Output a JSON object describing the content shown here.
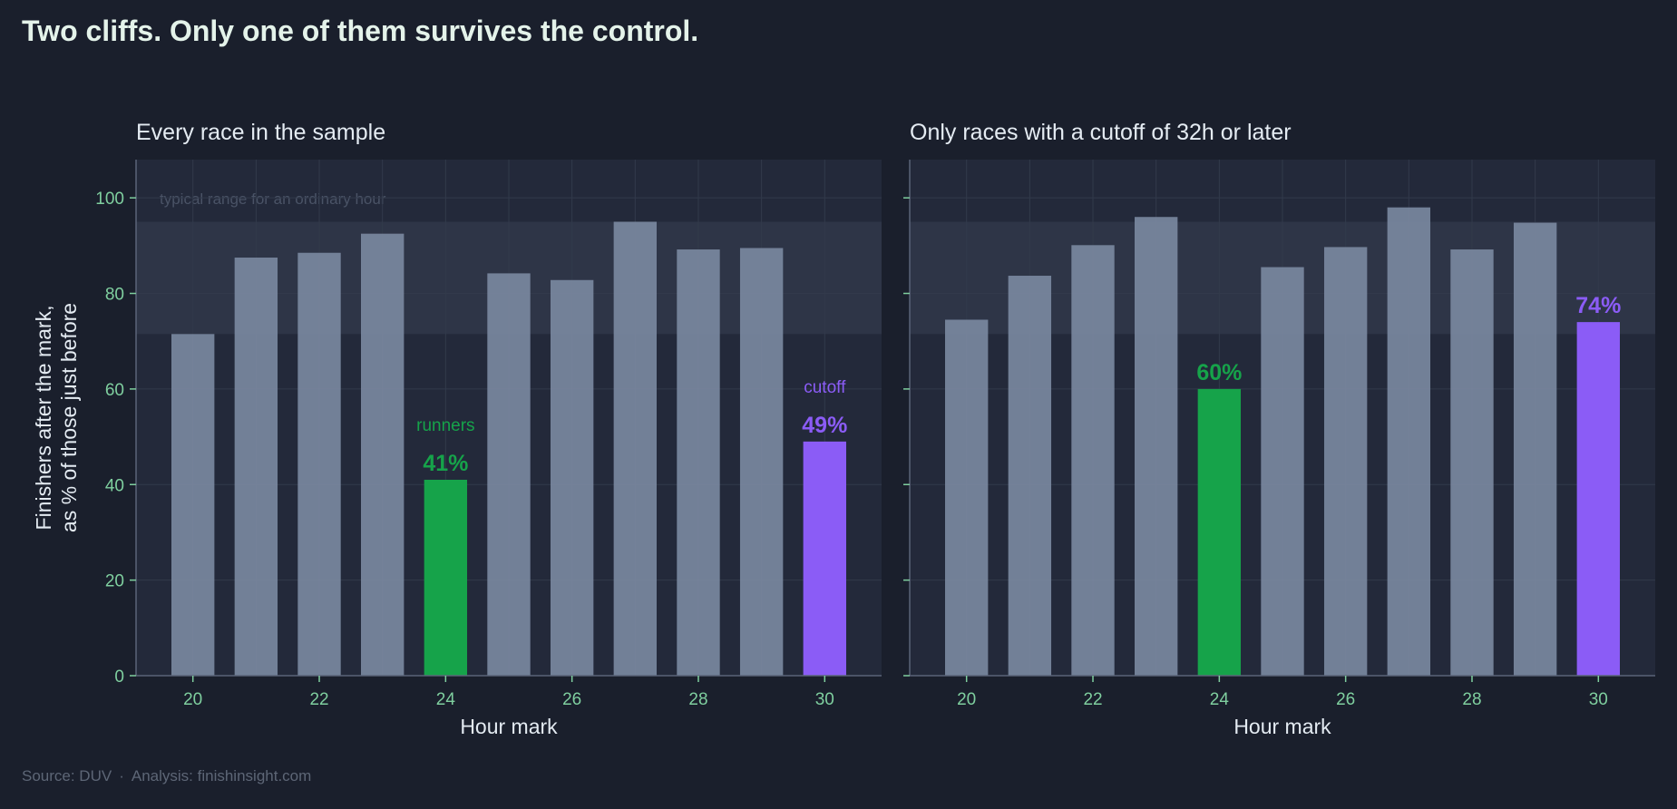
{
  "title": "Two cliffs. Only one of them survives the control.",
  "source": {
    "source_label": "Source: DUV",
    "separator": "·",
    "analysis_label": "Analysis: finishinsight.com"
  },
  "colors": {
    "background": "#1a1f2c",
    "plot_background": "#23293a",
    "band": "#2e3547",
    "bar": "#7a889f",
    "runners": "#16a34a",
    "cutoff": "#8b5cf6",
    "tick_label": "#7fcf9f",
    "text": "#e4ebf2"
  },
  "chart_data": [
    {
      "type": "bar",
      "title": "Every race in the sample",
      "xlabel": "Hour mark",
      "ylabel": "Finishers after the mark,\nas % of those just before",
      "x": [
        20,
        21,
        22,
        23,
        24,
        25,
        26,
        27,
        28,
        29,
        30
      ],
      "values": [
        71.5,
        87.5,
        88.5,
        92.5,
        41,
        84.2,
        82.8,
        95,
        89.2,
        89.5,
        49
      ],
      "xticks": [
        20,
        22,
        24,
        26,
        28,
        30
      ],
      "yticks": [
        0,
        20,
        40,
        60,
        80,
        100
      ],
      "ylim": [
        0,
        108
      ],
      "xlim": [
        19.1,
        30.9
      ],
      "grid": true,
      "band": {
        "from": 71.5,
        "to": 95,
        "label": "typical range for an ordinary hour"
      },
      "highlights": [
        {
          "x": 24,
          "color": "runners",
          "value_label": "41%",
          "tag": "runners"
        },
        {
          "x": 30,
          "color": "cutoff",
          "value_label": "49%",
          "tag": "cutoff"
        }
      ]
    },
    {
      "type": "bar",
      "title": "Only races with a cutoff of 32h or later",
      "xlabel": "Hour mark",
      "ylabel": "",
      "x": [
        20,
        21,
        22,
        23,
        24,
        25,
        26,
        27,
        28,
        29,
        30
      ],
      "values": [
        74.5,
        83.7,
        90.1,
        96,
        60,
        85.5,
        89.7,
        98,
        89.2,
        94.8,
        74
      ],
      "xticks": [
        20,
        22,
        24,
        26,
        28,
        30
      ],
      "yticks": [
        0,
        20,
        40,
        60,
        80,
        100
      ],
      "ylim": [
        0,
        108
      ],
      "xlim": [
        19.1,
        30.9
      ],
      "grid": true,
      "band": {
        "from": 71.5,
        "to": 95,
        "label": ""
      },
      "highlights": [
        {
          "x": 24,
          "color": "runners",
          "value_label": "60%",
          "tag": ""
        },
        {
          "x": 30,
          "color": "cutoff",
          "value_label": "74%",
          "tag": ""
        }
      ]
    }
  ]
}
